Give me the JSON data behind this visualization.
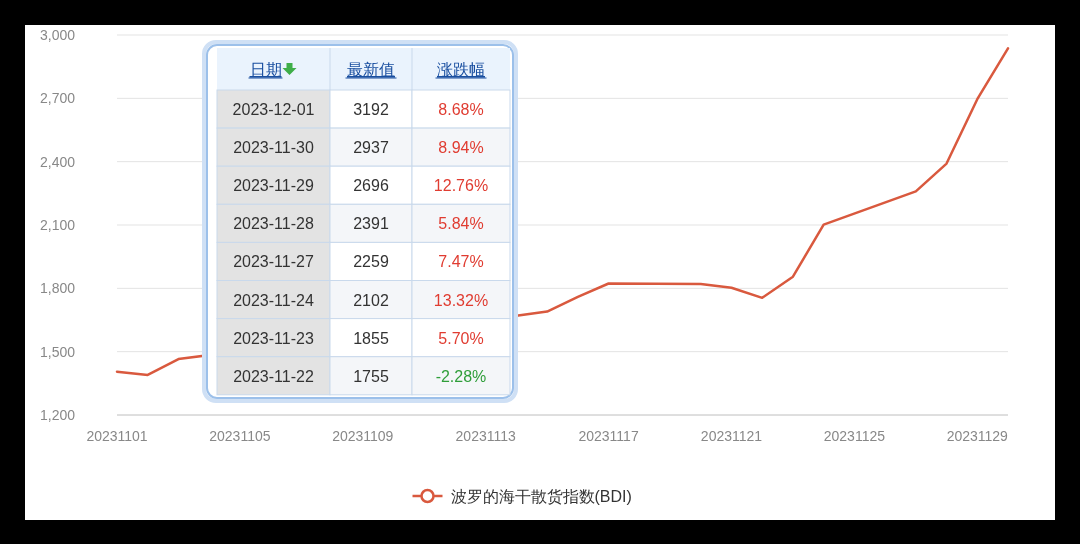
{
  "chart_data": [
    {
      "type": "line",
      "x": [
        "2023-11-01",
        "2023-11-02",
        "2023-11-03",
        "2023-11-14",
        "2023-11-15",
        "2023-11-16",
        "2023-11-17",
        "2023-11-20",
        "2023-11-21",
        "2023-11-22",
        "2023-11-23",
        "2023-11-24",
        "2023-11-27",
        "2023-11-28",
        "2023-11-29",
        "2023-11-30"
      ],
      "series": [
        {
          "name": "波罗的海干散货指数(BDI)",
          "color": "#d9593e",
          "values": [
            1405,
            1390,
            1465,
            1670,
            1690,
            1760,
            1823,
            1820,
            1803,
            1755,
            1855,
            2102,
            2259,
            2391,
            2696,
            2937
          ]
        }
      ],
      "xlim": [
        "2023-11-01",
        "2023-11-30"
      ],
      "xticks": [
        {
          "value": "2023-11-01",
          "label": "20231101"
        },
        {
          "value": "2023-11-05",
          "label": "20231105"
        },
        {
          "value": "2023-11-09",
          "label": "20231109"
        },
        {
          "value": "2023-11-13",
          "label": "20231113"
        },
        {
          "value": "2023-11-17",
          "label": "20231117"
        },
        {
          "value": "2023-11-21",
          "label": "20231121"
        },
        {
          "value": "2023-11-25",
          "label": "20231125"
        },
        {
          "value": "2023-11-29",
          "label": "20231129"
        }
      ],
      "ylim": [
        1200,
        3000
      ],
      "yticks": [
        {
          "value": 1200,
          "label": "1,200"
        },
        {
          "value": 1500,
          "label": "1,500"
        },
        {
          "value": 1800,
          "label": "1,800"
        },
        {
          "value": 2100,
          "label": "2,100"
        },
        {
          "value": 2400,
          "label": "2,400"
        },
        {
          "value": 2700,
          "label": "2,700"
        },
        {
          "value": 3000,
          "label": "3,000"
        }
      ],
      "grid": "y",
      "legend": "bottom"
    },
    {
      "type": "other",
      "annotations": [
        "日期",
        "最新值",
        "涨跌幅",
        "2023-12-01",
        "3192",
        "8.68%",
        "2023-11-30",
        "2937",
        "8.94%",
        "2023-11-29",
        "2696",
        "12.76%",
        "2023-11-28",
        "2391",
        "5.84%",
        "2023-11-27",
        "2259",
        "7.47%",
        "2023-11-24",
        "2102",
        "13.32%",
        "2023-11-23",
        "1855",
        "5.70%",
        "2023-11-22",
        "1755",
        "-2.28%"
      ],
      "colors": [
        "#1a4fa0",
        "#1a4fa0",
        "#1a4fa0",
        "#333333",
        "#333333",
        "#e03c31",
        "#333333",
        "#333333",
        "#e03c31",
        "#333333",
        "#333333",
        "#e03c31",
        "#333333",
        "#333333",
        "#e03c31",
        "#333333",
        "#333333",
        "#e03c31",
        "#333333",
        "#333333",
        "#e03c31",
        "#333333",
        "#333333",
        "#e03c31",
        "#333333",
        "#333333",
        "#2f9e3a"
      ]
    }
  ]
}
